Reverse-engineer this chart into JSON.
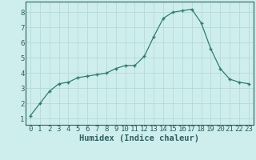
{
  "x": [
    0,
    1,
    2,
    3,
    4,
    5,
    6,
    7,
    8,
    9,
    10,
    11,
    12,
    13,
    14,
    15,
    16,
    17,
    18,
    19,
    20,
    21,
    22,
    23
  ],
  "y": [
    1.2,
    2.0,
    2.8,
    3.3,
    3.4,
    3.7,
    3.8,
    3.9,
    4.0,
    4.3,
    4.5,
    4.5,
    5.1,
    6.4,
    7.6,
    8.0,
    8.1,
    8.2,
    7.3,
    5.6,
    4.3,
    3.6,
    3.4,
    3.3
  ],
  "xlabel": "Humidex (Indice chaleur)",
  "bg_color": "#ceeeed",
  "line_color": "#2d7d6e",
  "grid_color": "#b5d9d8",
  "xlim": [
    -0.5,
    23.5
  ],
  "ylim": [
    0.6,
    8.7
  ],
  "yticks": [
    1,
    2,
    3,
    4,
    5,
    6,
    7,
    8
  ],
  "xticks": [
    0,
    1,
    2,
    3,
    4,
    5,
    6,
    7,
    8,
    9,
    10,
    11,
    12,
    13,
    14,
    15,
    16,
    17,
    18,
    19,
    20,
    21,
    22,
    23
  ],
  "xlabel_fontsize": 7.5,
  "tick_fontsize": 6.5
}
